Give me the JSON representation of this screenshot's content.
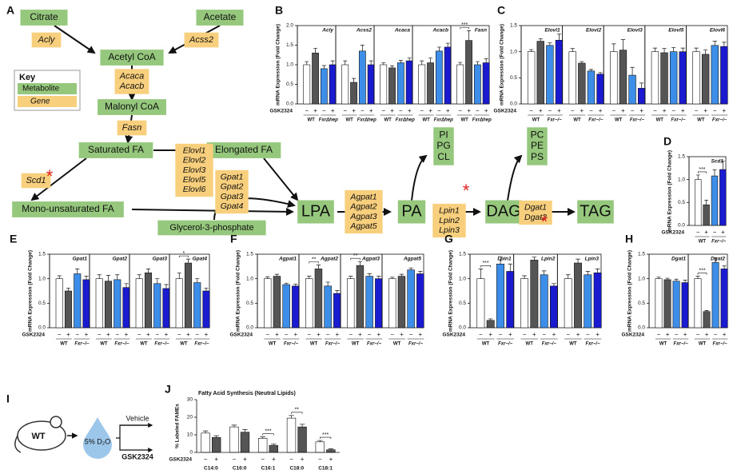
{
  "pathway": {
    "letter": "A",
    "asterisk": "*",
    "key": {
      "title": "Key",
      "metabolite": "Metabolite",
      "gene": "Gene"
    },
    "nodes": [
      {
        "label": [
          "Citrate"
        ],
        "kind": "metabolite"
      },
      {
        "label": [
          "Acetate"
        ],
        "kind": "metabolite"
      },
      {
        "label": [
          "Acly"
        ],
        "kind": "gene"
      },
      {
        "label": [
          "Acss2"
        ],
        "kind": "gene"
      },
      {
        "label": [
          "Acetyl CoA"
        ],
        "kind": "metabolite"
      },
      {
        "label": [
          "Acaca",
          "Acacb"
        ],
        "kind": "gene"
      },
      {
        "label": [
          "Malonyl CoA"
        ],
        "kind": "metabolite"
      },
      {
        "label": [
          "Fasn"
        ],
        "kind": "gene"
      },
      {
        "label": [
          "Saturated FA"
        ],
        "kind": "metabolite"
      },
      {
        "label": [
          "Elongated FA"
        ],
        "kind": "metabolite"
      },
      {
        "label": [
          "Elovl1",
          "Elovl2",
          "Elovl3",
          "Elovl5",
          "Elovl6"
        ],
        "kind": "gene"
      },
      {
        "label": [
          "Scd1"
        ],
        "kind": "gene"
      },
      {
        "label": [
          "Mono-unsaturated FA"
        ],
        "kind": "metabolite"
      },
      {
        "label": [
          "Gpat1",
          "Gpat2",
          "Gpat3",
          "Gpat4"
        ],
        "kind": "gene"
      },
      {
        "label": [
          "Glycerol-3-phosphate"
        ],
        "kind": "metabolite"
      },
      {
        "label": [
          "LPA"
        ],
        "kind": "metabolite"
      },
      {
        "label": [
          "Agpat1",
          "Agpat2",
          "Agpat3",
          "Agpat5"
        ],
        "kind": "gene"
      },
      {
        "label": [
          "PA"
        ],
        "kind": "metabolite"
      },
      {
        "label": [
          "PI",
          "PG",
          "CL"
        ],
        "kind": "metabolite"
      },
      {
        "label": [
          "Lpin1",
          "Lpin2",
          "Lpin3"
        ],
        "kind": "gene"
      },
      {
        "label": [
          "DAG"
        ],
        "kind": "metabolite"
      },
      {
        "label": [
          "PC",
          "PE",
          "PS"
        ],
        "kind": "metabolite"
      },
      {
        "label": [
          "Dgat1",
          "Dgat2"
        ],
        "kind": "gene"
      },
      {
        "label": [
          "TAG"
        ],
        "kind": "metabolite"
      }
    ]
  },
  "panel_i": {
    "letter": "I",
    "mouse": "WT",
    "tracer": "5% D₂O",
    "vehicle": "Vehicle",
    "drug": "GSK2324"
  },
  "chart_data": [
    {
      "type": "bar",
      "letter": "B",
      "ylabel": "mRNA Expression (Fold Change)",
      "ylim": [
        0,
        2
      ],
      "yticks": [
        {
          "value": 0,
          "label": "0.0"
        },
        0.5,
        {
          "value": 1,
          "label": "1.0"
        },
        1.5,
        {
          "value": 2,
          "label": "2.0"
        }
      ],
      "treatment": "GSK2324",
      "signs": [
        "−",
        "+"
      ],
      "group_labels": [
        "WT",
        "FxrΔhep"
      ],
      "colors": [
        "#ffffff",
        "#555555",
        "#3d8ee8",
        "#1a1ad0"
      ],
      "panels": [
        {
          "gene": "Acly",
          "values": [
            1.0,
            1.3,
            0.9,
            1.0
          ],
          "errors": [
            0.08,
            0.12,
            0.08,
            0.1
          ]
        },
        {
          "gene": "Acss2",
          "values": [
            1.0,
            0.55,
            1.35,
            1.0
          ],
          "errors": [
            0.1,
            0.1,
            0.15,
            0.1
          ]
        },
        {
          "gene": "Acaca",
          "values": [
            1.0,
            0.92,
            1.05,
            1.1
          ],
          "errors": [
            0.05,
            0.05,
            0.06,
            0.07
          ]
        },
        {
          "gene": "Acacb",
          "values": [
            1.0,
            1.05,
            1.35,
            1.45
          ],
          "errors": [
            0.1,
            0.12,
            0.1,
            0.1
          ]
        },
        {
          "gene": "Fasn",
          "values": [
            1.0,
            1.62,
            1.0,
            1.05
          ],
          "errors": [
            0.06,
            0.25,
            0.08,
            0.1
          ],
          "sig": "***"
        }
      ]
    },
    {
      "type": "bar",
      "letter": "C",
      "ylabel": "mRNA Expression (Fold Change)",
      "ylim": [
        0,
        1.5
      ],
      "yticks": [
        {
          "value": 0,
          "label": "0.0"
        },
        0.5,
        {
          "value": 1,
          "label": "1.0"
        },
        1.5
      ],
      "treatment": "GSK2324",
      "signs": [
        "−",
        "+"
      ],
      "group_labels": [
        "WT",
        "Fxr−/−"
      ],
      "colors": [
        "#ffffff",
        "#555555",
        "#3d8ee8",
        "#1a1ad0"
      ],
      "panels": [
        {
          "gene": "Elovl1",
          "values": [
            1.0,
            1.2,
            1.12,
            1.22
          ],
          "errors": [
            0.04,
            0.05,
            0.05,
            0.12
          ]
        },
        {
          "gene": "Elovl2",
          "values": [
            1.0,
            0.78,
            0.63,
            0.57
          ],
          "errors": [
            0.06,
            0.03,
            0.03,
            0.03
          ]
        },
        {
          "gene": "Elovl3",
          "values": [
            1.0,
            1.03,
            0.55,
            0.3
          ],
          "errors": [
            0.15,
            0.2,
            0.15,
            0.1
          ]
        },
        {
          "gene": "Elovl5",
          "values": [
            1.0,
            0.98,
            1.0,
            1.0
          ],
          "errors": [
            0.07,
            0.08,
            0.08,
            0.07
          ]
        },
        {
          "gene": "Elovl6",
          "values": [
            1.0,
            0.95,
            1.12,
            1.1
          ],
          "errors": [
            0.07,
            0.08,
            0.08,
            0.08
          ]
        }
      ]
    },
    {
      "type": "bar",
      "letter": "D",
      "ylabel": "mRNA Expression (Fold Change)",
      "ylim": [
        0,
        1.5
      ],
      "yticks": [
        {
          "value": 0,
          "label": "0.0"
        },
        0.5,
        {
          "value": 1,
          "label": "1.0"
        },
        1.5
      ],
      "treatment": "GSK2324",
      "signs": [
        "−",
        "+"
      ],
      "group_labels": [
        "WT",
        "Fxr−/−"
      ],
      "colors": [
        "#ffffff",
        "#555555",
        "#3d8ee8",
        "#1a1ad0"
      ],
      "panels": [
        {
          "gene": "Scd1",
          "values": [
            1.0,
            0.45,
            1.08,
            1.22
          ],
          "errors": [
            0.1,
            0.1,
            0.13,
            0.18
          ],
          "sig": "***"
        }
      ]
    },
    {
      "type": "bar",
      "letter": "E",
      "ylabel": "mRNA Expression (Fold Change)",
      "ylim": [
        0,
        1.5
      ],
      "yticks": [
        {
          "value": 0,
          "label": "0.0"
        },
        0.5,
        {
          "value": 1,
          "label": "1.0"
        },
        1.5
      ],
      "treatment": "GSK2324",
      "signs": [
        "−",
        "+"
      ],
      "group_labels": [
        "WT",
        "Fxr−/−"
      ],
      "colors": [
        "#ffffff",
        "#555555",
        "#3d8ee8",
        "#1a1ad0"
      ],
      "panels": [
        {
          "gene": "Gpat1",
          "values": [
            1.0,
            0.75,
            1.1,
            0.98
          ],
          "errors": [
            0.06,
            0.06,
            0.1,
            0.07
          ]
        },
        {
          "gene": "Gpat2",
          "values": [
            1.0,
            0.95,
            0.98,
            0.82
          ],
          "errors": [
            0.08,
            0.12,
            0.1,
            0.08
          ]
        },
        {
          "gene": "Gpat3",
          "values": [
            1.0,
            1.12,
            0.9,
            0.8
          ],
          "errors": [
            0.08,
            0.08,
            0.1,
            0.08
          ]
        },
        {
          "gene": "Gpat4",
          "values": [
            1.0,
            1.32,
            0.92,
            0.75
          ],
          "errors": [
            0.12,
            0.08,
            0.08,
            0.06
          ],
          "sig": "*"
        }
      ]
    },
    {
      "type": "bar",
      "letter": "F",
      "ylabel": "mRNA Expression (Fold Change)",
      "ylim": [
        0,
        1.5
      ],
      "yticks": [
        {
          "value": 0,
          "label": "0.0"
        },
        0.5,
        {
          "value": 1,
          "label": "1.0"
        },
        1.5
      ],
      "treatment": "GSK2324",
      "signs": [
        "−",
        "+"
      ],
      "group_labels": [
        "WT",
        "Fxr−/−"
      ],
      "colors": [
        "#ffffff",
        "#555555",
        "#3d8ee8",
        "#1a1ad0"
      ],
      "panels": [
        {
          "gene": "Agpat1",
          "values": [
            1.0,
            1.05,
            0.88,
            0.85
          ],
          "errors": [
            0.04,
            0.04,
            0.03,
            0.04
          ]
        },
        {
          "gene": "Agpat2",
          "values": [
            1.0,
            1.2,
            0.85,
            0.7
          ],
          "errors": [
            0.05,
            0.08,
            0.08,
            0.06
          ],
          "sig": "**"
        },
        {
          "gene": "Agpat3",
          "values": [
            1.0,
            1.27,
            1.05,
            1.0
          ],
          "errors": [
            0.05,
            0.08,
            0.05,
            0.05
          ],
          "sig": "**"
        },
        {
          "gene": "Agpat5",
          "values": [
            1.0,
            1.05,
            1.18,
            1.1
          ],
          "errors": [
            0.03,
            0.04,
            0.04,
            0.05
          ]
        }
      ]
    },
    {
      "type": "bar",
      "letter": "G",
      "ylabel": "mRNA Expression (Fold Change)",
      "ylim": [
        0,
        1.5
      ],
      "yticks": [
        {
          "value": 0,
          "label": "0.0"
        },
        0.5,
        {
          "value": 1,
          "label": "1.0"
        },
        1.5
      ],
      "treatment": "GSK2324",
      "signs": [
        "−",
        "+"
      ],
      "group_labels": [
        "WT",
        "Fxr−/−"
      ],
      "colors": [
        "#ffffff",
        "#555555",
        "#3d8ee8",
        "#1a1ad0"
      ],
      "panels": [
        {
          "gene": "Lpin1",
          "values": [
            1.0,
            0.15,
            1.3,
            1.15
          ],
          "errors": [
            0.2,
            0.03,
            0.15,
            0.15
          ],
          "sig": "***"
        },
        {
          "gene": "Lpin2",
          "values": [
            1.0,
            1.38,
            1.08,
            0.85
          ],
          "errors": [
            0.06,
            0.06,
            0.08,
            0.05
          ]
        },
        {
          "gene": "Lpin3",
          "values": [
            1.0,
            1.32,
            1.08,
            1.12
          ],
          "errors": [
            0.08,
            0.08,
            0.07,
            0.08
          ]
        }
      ]
    },
    {
      "type": "bar",
      "letter": "H",
      "ylabel": "mRNA Expression (Fold Change)",
      "ylim": [
        0,
        1.5
      ],
      "yticks": [
        {
          "value": 0,
          "label": "0.0"
        },
        0.5,
        {
          "value": 1,
          "label": "1.0"
        },
        1.5
      ],
      "treatment": "GSK2324",
      "signs": [
        "−",
        "+"
      ],
      "group_labels": [
        "WT",
        "Fxr−/−"
      ],
      "colors": [
        "#ffffff",
        "#555555",
        "#3d8ee8",
        "#1a1ad0"
      ],
      "panels": [
        {
          "gene": "Dgat1",
          "values": [
            1.0,
            0.98,
            0.95,
            0.92
          ],
          "errors": [
            0.03,
            0.03,
            0.04,
            0.05
          ]
        },
        {
          "gene": "Dgat2",
          "values": [
            1.0,
            0.33,
            1.33,
            1.2
          ],
          "errors": [
            0.05,
            0.02,
            0.1,
            0.06
          ],
          "sig": "***"
        }
      ]
    },
    {
      "type": "bar",
      "letter": "J",
      "title": "Fatty Acid Synthesis (Neutral Lipids)",
      "ylabel": "% Labeled FAMEs",
      "ylim": [
        0,
        30
      ],
      "yticks": [
        0,
        10,
        20,
        30
      ],
      "treatment": "GSK2324",
      "signs": [
        "−",
        "+"
      ],
      "colors": [
        "#ffffff",
        "#555555"
      ],
      "panels": [
        {
          "gene": "C14:0",
          "values": [
            11,
            8.5
          ],
          "errors": [
            1.2,
            1.0
          ]
        },
        {
          "gene": "C16:0",
          "values": [
            14.5,
            11.5
          ],
          "errors": [
            1.0,
            1.5
          ]
        },
        {
          "gene": "C16:1",
          "values": [
            8,
            4
          ],
          "errors": [
            0.8,
            0.8
          ],
          "sig": "***"
        },
        {
          "gene": "C18:0",
          "values": [
            19.5,
            14.5
          ],
          "errors": [
            1.5,
            1.5
          ],
          "sig": "**"
        },
        {
          "gene": "C18:1",
          "values": [
            6,
            1.5
          ],
          "errors": [
            0.8,
            0.5
          ],
          "sig": "***"
        }
      ]
    }
  ]
}
